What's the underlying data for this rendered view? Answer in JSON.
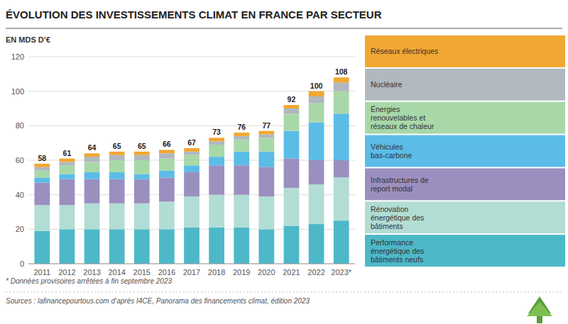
{
  "chart_data": {
    "type": "bar",
    "stacked": true,
    "grid": true,
    "legend": "right",
    "title": "ÉVOLUTION DES INVESTISSEMENTS CLIMAT EN FRANCE PAR SECTEUR",
    "subtitle": "EN MDS D’€",
    "annotations": [
      "* Données provisoires arrêtées à fin septembre 2023",
      "Sources : lafinancepourtous.com d’après I4CE, Panorama des financements climat, édition 2023"
    ],
    "categories": [
      "2011",
      "2012",
      "2013",
      "2014",
      "2015",
      "2016",
      "2017",
      "2018",
      "2019",
      "2020",
      "2021",
      "2022",
      "2023*"
    ],
    "series": [
      {
        "name": "Performance\nénergétique des\nbâtiments neufs",
        "color": "#4db8c8",
        "values": [
          19,
          20,
          20,
          20,
          20,
          20,
          21,
          21,
          21,
          20,
          22,
          23,
          25
        ]
      },
      {
        "name": "Rénovation\nénergétique des\nbâtiments",
        "color": "#b2ddd4",
        "values": [
          15,
          14,
          15,
          15,
          15,
          16,
          18,
          19,
          19,
          19,
          22,
          23,
          25
        ]
      },
      {
        "name": "Infrastructures de\nreport modal",
        "color": "#9b8fc0",
        "values": [
          13,
          15,
          14,
          14,
          14,
          14,
          14,
          17,
          17,
          17,
          17,
          14,
          10
        ]
      },
      {
        "name": "Véhicules\nbas-carbone",
        "color": "#5bbce8",
        "values": [
          3,
          3,
          4,
          4,
          3,
          4,
          4,
          5,
          8,
          9,
          16,
          22,
          27
        ]
      },
      {
        "name": "Énergies\nrenouvelables et\nréseaux de chaleur",
        "color": "#a8d8a8",
        "values": [
          4,
          5,
          6,
          7,
          8,
          7,
          6,
          7,
          7,
          8,
          10,
          11,
          13
        ]
      },
      {
        "name": "Nucléaire",
        "color": "#b0b8c0",
        "values": [
          2,
          2,
          3,
          3,
          3,
          3,
          2,
          2,
          2,
          2,
          3,
          4,
          5
        ]
      },
      {
        "name": "Réseaux électriques",
        "color": "#f0a832",
        "values": [
          2,
          2,
          2,
          2,
          2,
          2,
          2,
          2,
          2,
          2,
          2,
          3,
          3
        ]
      }
    ],
    "totals": [
      58,
      61,
      64,
      65,
      65,
      66,
      67,
      73,
      76,
      77,
      92,
      100,
      108
    ],
    "ylim": [
      0,
      120
    ],
    "yticks": [
      0,
      20,
      40,
      60,
      80,
      100,
      120
    ]
  }
}
